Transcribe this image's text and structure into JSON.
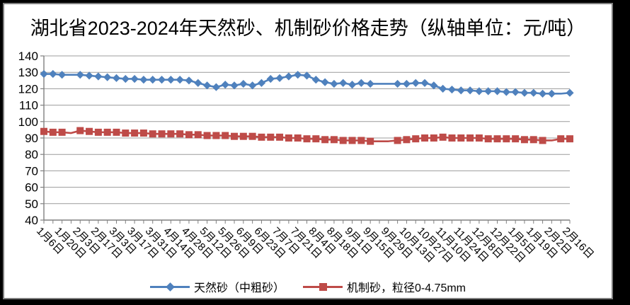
{
  "window": {
    "background": "#000000",
    "frame_border": "#7f7f7f",
    "chart_background": "#ffffff"
  },
  "chart_data": {
    "type": "line",
    "title": "湖北省2023-2024年天然砂、机制砂价格走势（纵轴单位：元/吨）",
    "ylabel_unit": "元/吨",
    "grid": "horizontal",
    "legend_position": "bottom",
    "y_axis": {
      "min": 40,
      "max": 140,
      "step": 10
    },
    "y_tick_labels": [
      "140",
      "130",
      "120",
      "110",
      "100",
      "90",
      "80",
      "70",
      "60",
      "50",
      "40"
    ],
    "x_tick_labels": [
      "1月6日",
      "1月20日",
      "2月3日",
      "2月17日",
      "3月3日",
      "3月17日",
      "3月31日",
      "4月14日",
      "4月28日",
      "5月12日",
      "5月26日",
      "6月9日",
      "6月23日",
      "7月7日",
      "7月21日",
      "8月4日",
      "8月18日",
      "9月1日",
      "9月15日",
      "9月29日",
      "10月13日",
      "10月27日",
      "11月10日",
      "11月24日",
      "12月8日",
      "12月22日",
      "1月5日",
      "1月19日",
      "2月2日",
      "2月16日"
    ],
    "x_label_every_n_points": 2,
    "series": [
      {
        "name": "天然砂（中粗砂）",
        "color": "#4F81BD",
        "marker": "diamond",
        "marker_skip": [
          3,
          37,
          38,
          57
        ],
        "values": [
          129,
          129,
          128.5,
          128.5,
          128.5,
          128,
          127.5,
          127,
          126.5,
          126,
          126,
          125.5,
          125.5,
          125.5,
          125.5,
          125.5,
          125,
          123.5,
          122,
          121,
          122.5,
          122,
          123,
          122,
          123.5,
          126,
          126.5,
          127.5,
          128.5,
          128,
          125.5,
          124,
          123,
          123.5,
          122.5,
          123.5,
          123,
          123,
          123,
          123,
          123,
          123.5,
          123.5,
          122,
          120,
          119.5,
          119,
          119,
          118.5,
          118.5,
          118.5,
          118,
          118,
          117.5,
          117.5,
          117,
          117,
          117,
          117.5
        ]
      },
      {
        "name": "机制砂，粒径0-4.75mm",
        "color": "#BE4B48",
        "marker": "square",
        "marker_skip": [
          3,
          37,
          38,
          56
        ],
        "values": [
          94,
          93.5,
          93.5,
          93,
          94.5,
          94,
          93.5,
          93.5,
          93.5,
          93,
          93,
          93,
          92.5,
          92.5,
          92.5,
          92.5,
          92,
          92,
          91.5,
          91.5,
          91.5,
          91,
          91,
          91,
          90.5,
          90.5,
          90.5,
          90,
          90,
          89.5,
          89.5,
          89,
          89,
          88.5,
          88.5,
          88.5,
          88,
          88,
          88,
          88.5,
          89,
          89.5,
          90,
          90,
          90.5,
          90,
          90,
          90,
          90,
          89.5,
          89.5,
          89.5,
          89.5,
          89,
          89,
          88.5,
          88.5,
          89.5,
          89.5
        ]
      }
    ],
    "axis_color": "#808080",
    "gridline_color": "#9c9c9c",
    "text_color": "#000000"
  }
}
